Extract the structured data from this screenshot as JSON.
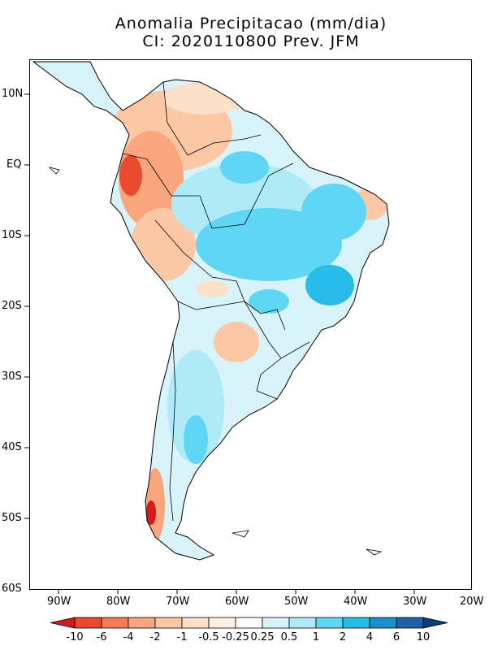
{
  "title": {
    "line1": "Anomalia Precipitacao (mm/dia)",
    "line2": "CI: 2020110800 Prev. JFM"
  },
  "axes": {
    "lat_labels": [
      "10N",
      "EQ",
      "10S",
      "20S",
      "30S",
      "40S",
      "50S",
      "60S"
    ],
    "lon_labels": [
      "90W",
      "80W",
      "70W",
      "60W",
      "50W",
      "40W",
      "30W",
      "20W"
    ]
  },
  "legend": {
    "labels": [
      "-10",
      "-6",
      "-4",
      "-2",
      "-1",
      "-0.5",
      "-0.25",
      "0.25",
      "0.5",
      "1",
      "2",
      "4",
      "6",
      "10"
    ],
    "colors": [
      "#d7191c",
      "#ea4a2e",
      "#f47b52",
      "#f9a57d",
      "#fcc7a4",
      "#fde0c8",
      "#fef0e2",
      "#ffffff",
      "#d9f3fb",
      "#aeeaf8",
      "#5fd6f4",
      "#27bde8",
      "#1a8fcf",
      "#1d62a5",
      "#0b3f7c"
    ]
  },
  "colors": {
    "land_outline": "#000000",
    "positive_anomaly": "#5fd6f4",
    "negative_anomaly": "#f9a57d",
    "extreme_negative": "#ea4a2e"
  }
}
